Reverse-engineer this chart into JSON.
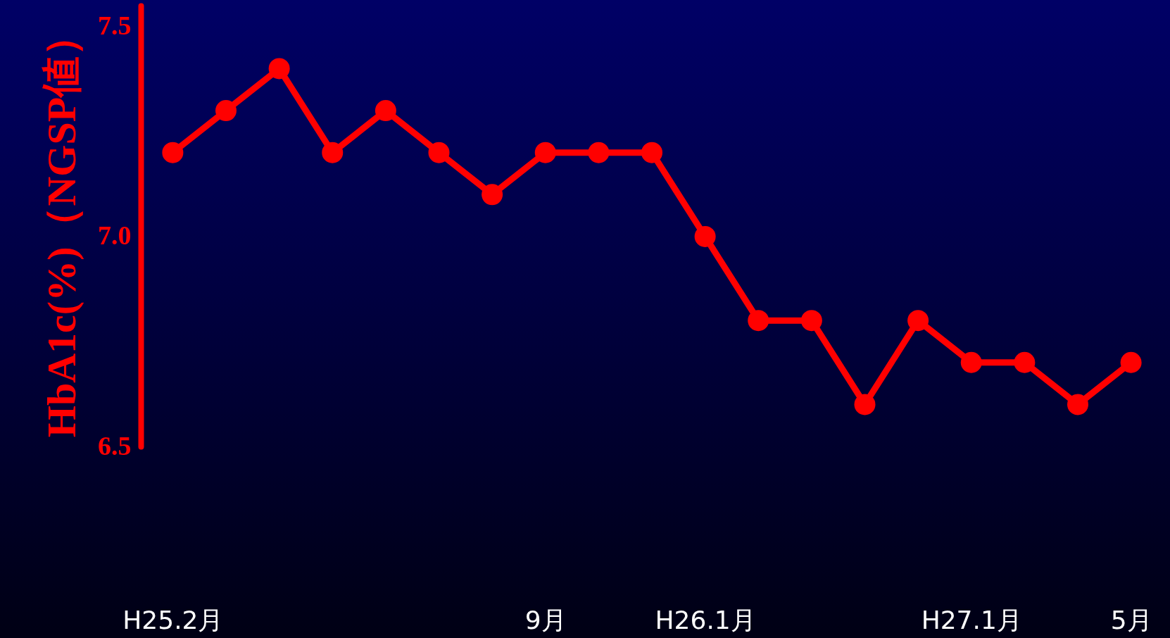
{
  "chart_data": {
    "type": "line",
    "ylabel": "HbA1c(%)（NGSP値）",
    "categories": [
      "H25.2月",
      null,
      null,
      null,
      null,
      null,
      null,
      "9月",
      null,
      null,
      "H26.1月",
      null,
      null,
      null,
      null,
      "H27.1月",
      null,
      null,
      "5月"
    ],
    "series": [
      {
        "color": "#ff0000",
        "values": [
          7.2,
          7.3,
          7.4,
          7.2,
          7.3,
          7.2,
          7.1,
          7.2,
          7.2,
          7.2,
          7.0,
          6.8,
          6.8,
          6.6,
          6.8,
          6.7,
          6.7,
          6.6,
          6.7
        ]
      }
    ],
    "ylim": [
      6.5,
      7.55
    ],
    "yticks": [
      6.5,
      {
        "value": 7,
        "label": "7.0"
      },
      7.5
    ],
    "marker": "circle",
    "line_style": "solid"
  }
}
